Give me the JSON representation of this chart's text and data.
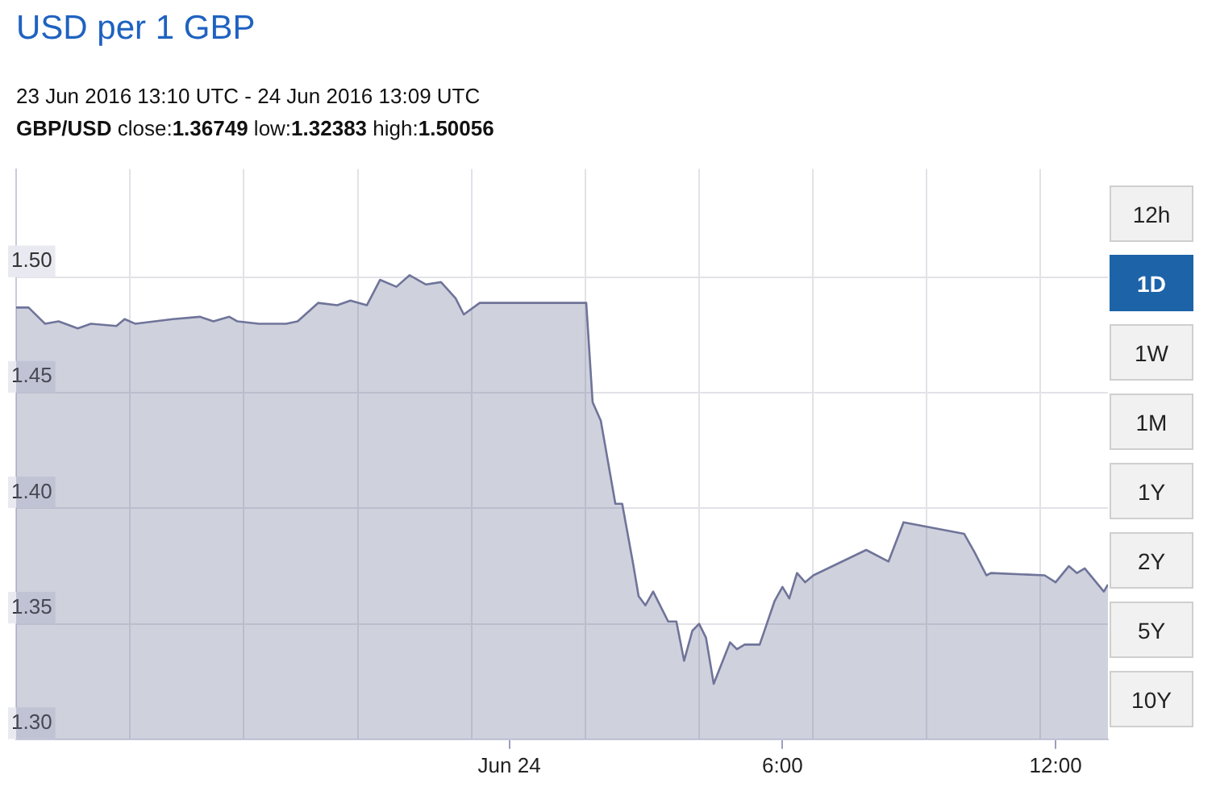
{
  "chart_data": {
    "type": "area",
    "title": "USD per 1 GBP",
    "subtitle": "23 Jun 2016 13:10 UTC - 24 Jun 2016 13:09 UTC",
    "annotations": [
      "GBP/USD close:1.36749 low:1.32383 high:1.50056",
      "12h",
      "1D",
      "1W",
      "1M",
      "1Y",
      "2Y",
      "5Y",
      "10Y"
    ],
    "series": [
      {
        "color": "#6f7499",
        "x": [
          -10.8333,
          -10.56,
          -10.2,
          -9.9,
          -9.48,
          -9.19,
          -8.63,
          -8.45,
          -8.22,
          -7.39,
          -6.8,
          -6.5,
          -6.15,
          -5.97,
          -5.5,
          -4.9,
          -4.65,
          -4.2,
          -3.78,
          -3.49,
          -3.13,
          -2.84,
          -2.48,
          -2.19,
          -1.83,
          -1.5,
          -1.18,
          -1.0,
          -0.65,
          1.69,
          1.83,
          2.01,
          2.33,
          2.48,
          2.72,
          2.84,
          2.99,
          3.16,
          3.49,
          3.67,
          3.84,
          4.02,
          4.17,
          4.32,
          4.49,
          4.85,
          5.0,
          5.17,
          5.5,
          5.83,
          6.0,
          6.15,
          6.32,
          6.5,
          6.68,
          7.84,
          8.33,
          8.66,
          9.99,
          10.22,
          10.48,
          10.58,
          11.76,
          12.0,
          12.29,
          12.47,
          12.64,
          13.06,
          13.15
        ],
        "values": [
          1.487,
          1.487,
          1.48,
          1.481,
          1.478,
          1.48,
          1.479,
          1.482,
          1.48,
          1.482,
          1.483,
          1.481,
          1.483,
          1.481,
          1.48,
          1.48,
          1.481,
          1.489,
          1.488,
          1.49,
          1.488,
          1.499,
          1.496,
          1.501,
          1.497,
          1.498,
          1.491,
          1.484,
          1.489,
          1.489,
          1.446,
          1.438,
          1.402,
          1.402,
          1.376,
          1.362,
          1.358,
          1.364,
          1.351,
          1.351,
          1.334,
          1.347,
          1.35,
          1.344,
          1.324,
          1.342,
          1.339,
          1.341,
          1.341,
          1.36,
          1.366,
          1.361,
          1.372,
          1.368,
          1.371,
          1.382,
          1.377,
          1.394,
          1.389,
          1.381,
          1.371,
          1.372,
          1.371,
          1.368,
          1.375,
          1.372,
          1.374,
          1.364,
          1.367
        ]
      }
    ],
    "xlim": [
      -10.8333,
      13.15
    ],
    "xticks": [
      {
        "value": -8.33,
        "label": null
      },
      {
        "value": -5.83,
        "label": null
      },
      {
        "value": -3.33,
        "label": null
      },
      {
        "value": -0.83,
        "label": null
      },
      {
        "value": 0,
        "label": "Jun 24"
      },
      {
        "value": 1.67,
        "label": null
      },
      {
        "value": 4.17,
        "label": null
      },
      {
        "value": 6,
        "label": "6:00"
      },
      {
        "value": 6.67,
        "label": null
      },
      {
        "value": 9.17,
        "label": null
      },
      {
        "value": 11.67,
        "label": null
      },
      {
        "value": 12,
        "label": "12:00"
      }
    ],
    "ylim": [
      1.3,
      1.547
    ],
    "yticks": [
      {
        "value": 1.3,
        "label": "1.30"
      },
      {
        "value": 1.35,
        "label": "1.35"
      },
      {
        "value": 1.4,
        "label": "1.40"
      },
      {
        "value": 1.45,
        "label": "1.45"
      },
      {
        "value": 1.5,
        "label": "1.50"
      }
    ],
    "grid": true,
    "legend": false,
    "marker": "none",
    "line_style": "solid"
  }
}
